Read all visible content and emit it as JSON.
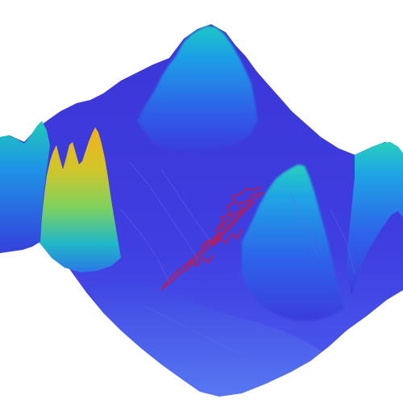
{
  "image": {
    "subject": "terrain-surface-with-path",
    "colormap": [
      "#3a2fd8",
      "#2d6cf0",
      "#1fa3e8",
      "#1ec9c2",
      "#86d35a",
      "#e2c52c",
      "#f2a51a"
    ],
    "background": "#ffffff",
    "path_color": "#e0102a"
  }
}
